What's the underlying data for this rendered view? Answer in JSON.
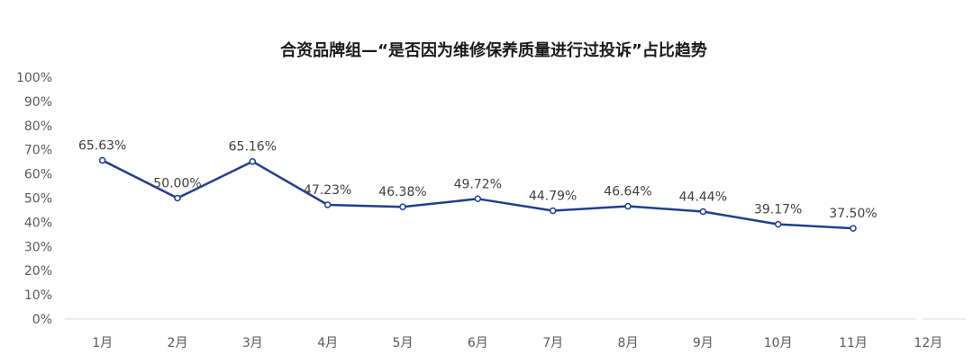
{
  "chart_data": {
    "type": "line",
    "title": "合资品牌组—“是否因为维修保养质量进行过投诉”占比趋势",
    "categories": [
      "1月",
      "2月",
      "3月",
      "4月",
      "5月",
      "6月",
      "7月",
      "8月",
      "9月",
      "10月",
      "11月",
      "12月"
    ],
    "series": [
      {
        "values": [
          65.63,
          50.0,
          65.16,
          47.23,
          46.38,
          49.72,
          44.79,
          46.64,
          44.44,
          39.17,
          37.5,
          null
        ],
        "labels": [
          "65.63%",
          "50.00%",
          "65.16%",
          "47.23%",
          "46.38%",
          "49.72%",
          "44.79%",
          "46.64%",
          "44.44%",
          "39.17%",
          "37.50%",
          ""
        ]
      }
    ],
    "xlabel": "",
    "ylabel": "",
    "ylim": [
      0,
      100
    ],
    "yticks": [
      "0%",
      "10%",
      "20%",
      "30%",
      "40%",
      "50%",
      "60%",
      "70%",
      "80%",
      "90%",
      "100%"
    ],
    "grid": false,
    "legend": "none",
    "colors": {
      "line": "#1f3f8c",
      "marker_fill": "#ffffff",
      "axis": "#d9d9d9"
    }
  }
}
